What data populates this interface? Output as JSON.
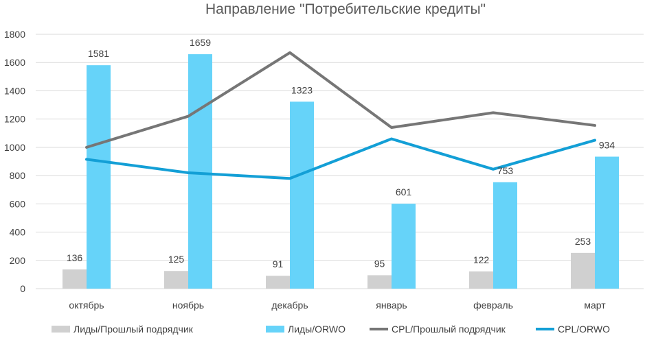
{
  "chart_data": {
    "type": "bar",
    "title": "Направление \"Потребительские кредиты\"",
    "categories": [
      "октябрь",
      "ноябрь",
      "декабрь",
      "январь",
      "февраль",
      "март"
    ],
    "ylim": [
      0,
      1800
    ],
    "yticks": [
      0,
      200,
      400,
      600,
      800,
      1000,
      1200,
      1400,
      1600,
      1800
    ],
    "grid": true,
    "legend_position": "bottom",
    "series": [
      {
        "name": "Лиды/Прошлый подрядчик",
        "kind": "bar",
        "color": "#d0d0d0",
        "values": [
          136,
          125,
          91,
          95,
          122,
          253
        ],
        "labels_shown": true
      },
      {
        "name": "Лиды/ORWO",
        "kind": "bar",
        "color": "#66d3f9",
        "values": [
          1581,
          1659,
          1323,
          601,
          753,
          934
        ],
        "labels_shown": true
      },
      {
        "name": "CPL/Прошлый подрядчик",
        "kind": "line",
        "color": "#767676",
        "values": [
          1000,
          1220,
          1670,
          1140,
          1245,
          1155
        ],
        "labels_shown": false
      },
      {
        "name": "CPL/ORWO",
        "kind": "line",
        "color": "#139fd6",
        "values": [
          915,
          820,
          780,
          1060,
          845,
          1050
        ],
        "labels_shown": false
      }
    ]
  }
}
